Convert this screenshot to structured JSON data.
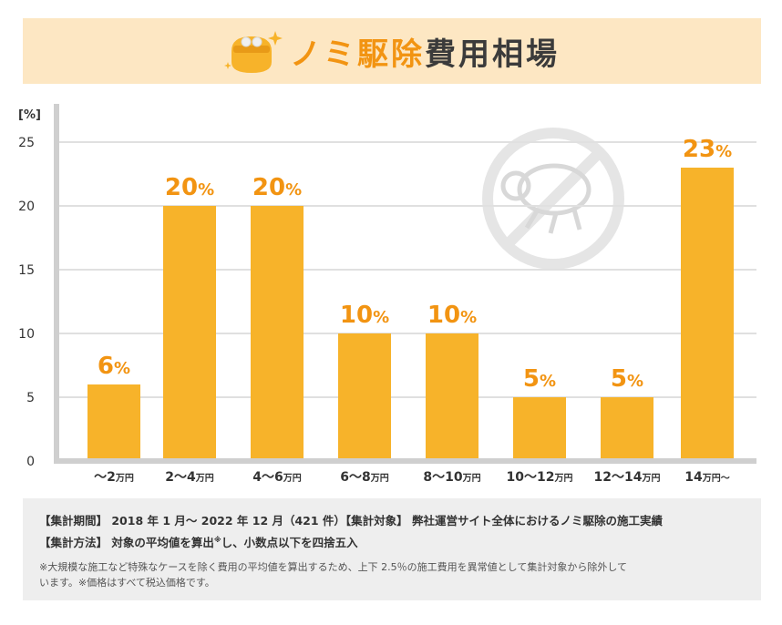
{
  "title": {
    "accent_text": "ノミ駆除",
    "rest_text": "費用相場"
  },
  "colors": {
    "bar": "#f7b32a",
    "label": "#f29412",
    "title_band": "#fde7c3",
    "grid": "#e0e0e0",
    "axis": "#cfcfcf"
  },
  "icons": {
    "title": "coin-purse-icon",
    "decoration": "no-flea-icon"
  },
  "chart_data": {
    "type": "bar",
    "y_unit_label": "[%]",
    "ylim": [
      0,
      25
    ],
    "yticks": [
      "0",
      "5",
      "10",
      "15",
      "20",
      "25"
    ],
    "grid": true,
    "bars": [
      {
        "cat_prefix": "～2",
        "cat_suffix": "万円",
        "value": 6,
        "label_num": "6",
        "label_unit": "%"
      },
      {
        "cat_prefix": "2～4",
        "cat_suffix": "万円",
        "value": 20,
        "label_num": "20",
        "label_unit": "%"
      },
      {
        "cat_prefix": "4～6",
        "cat_suffix": "万円",
        "value": 20,
        "label_num": "20",
        "label_unit": "%"
      },
      {
        "cat_prefix": "6～8",
        "cat_suffix": "万円",
        "value": 10,
        "label_num": "10",
        "label_unit": "%"
      },
      {
        "cat_prefix": "8～10",
        "cat_suffix": "万円",
        "value": 10,
        "label_num": "10",
        "label_unit": "%"
      },
      {
        "cat_prefix": "10～12",
        "cat_suffix": "万円",
        "value": 5,
        "label_num": "5",
        "label_unit": "%"
      },
      {
        "cat_prefix": "12～14",
        "cat_suffix": "万円",
        "value": 5,
        "label_num": "5",
        "label_unit": "%"
      },
      {
        "cat_prefix": "14",
        "cat_suffix": "万円～",
        "value": 23,
        "label_num": "23",
        "label_unit": "%"
      }
    ]
  },
  "notes": {
    "line1": "【集計期間】 2018 年 1 月～ 2022 年 12 月（421 件）【集計対象】 弊社運営サイト全体におけるノミ駆除の施工実績",
    "line2_a": "【集計方法】 対象の平均値を算出",
    "line2_mark": "※",
    "line2_b": "し、小数点以下を四捨五入",
    "fine1": "※大規模な施工など特殊なケースを除く費用の平均値を算出するため、上下 2.5％の施工費用を異常値として集計対象から除外して",
    "fine2": "います。※価格はすべて税込価格です。"
  }
}
